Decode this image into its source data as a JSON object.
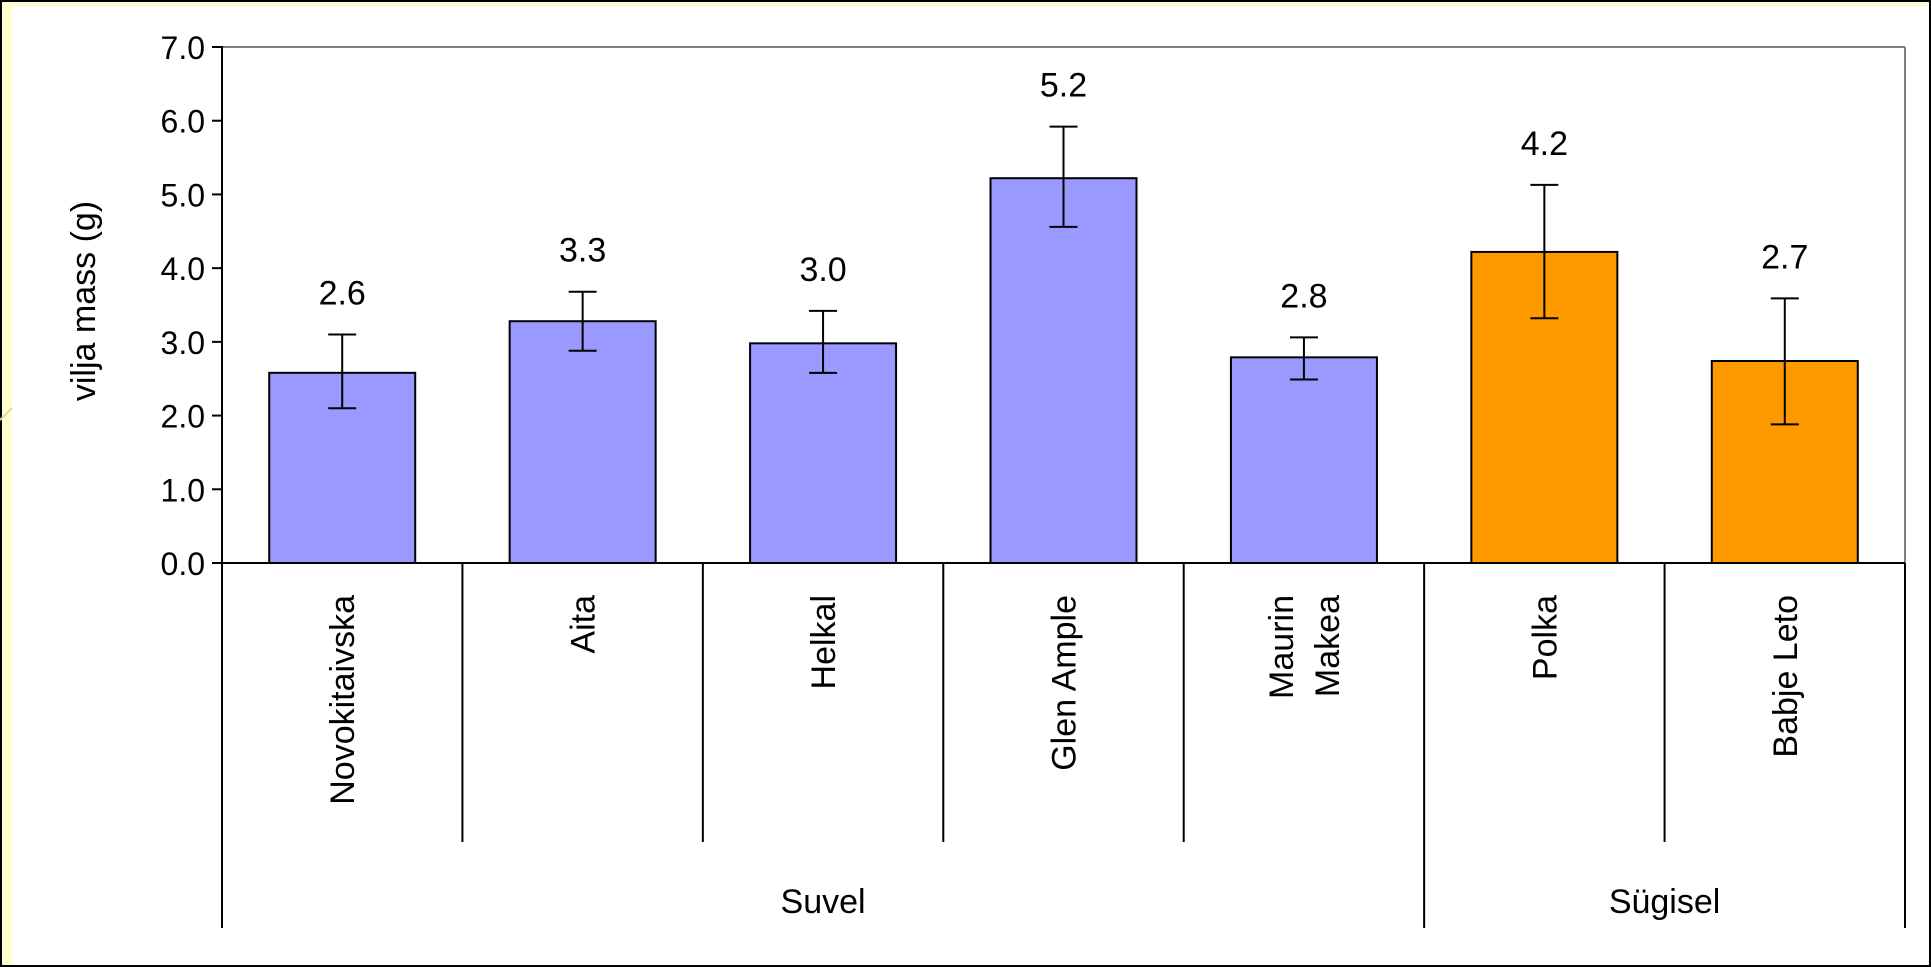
{
  "chart_data": {
    "type": "bar",
    "title": "",
    "xlabel": "",
    "ylabel": "vilja mass (g)",
    "ylim": [
      0,
      7
    ],
    "yticks": [
      "0.0",
      "1.0",
      "2.0",
      "3.0",
      "4.0",
      "5.0",
      "6.0",
      "7.0"
    ],
    "grid": false,
    "categories": [
      "Novokitaivska",
      "Aita",
      "Helkal",
      "Glen Ample",
      "Maurin Makea",
      "Polka",
      "Babje Leto"
    ],
    "category_lines": [
      [
        "Novokitaivska"
      ],
      [
        "Aita"
      ],
      [
        "Helkal"
      ],
      [
        "Glen Ample"
      ],
      [
        "Maurin",
        "Makea"
      ],
      [
        "Polka"
      ],
      [
        "Babje Leto"
      ]
    ],
    "values": [
      2.58,
      3.28,
      2.98,
      5.22,
      2.79,
      4.22,
      2.74
    ],
    "value_labels": [
      "2.6",
      "3.3",
      "3.0",
      "5.2",
      "2.8",
      "4.2",
      "2.7"
    ],
    "error_low": [
      2.1,
      2.88,
      2.58,
      4.56,
      2.49,
      3.32,
      1.88
    ],
    "error_high": [
      3.1,
      3.68,
      3.42,
      5.92,
      3.06,
      5.13,
      3.59
    ],
    "groups": [
      {
        "label": "Suvel",
        "count": 5,
        "color": "#9999ff"
      },
      {
        "label": "Sügisel",
        "count": 2,
        "color": "#ff9900"
      }
    ],
    "colors": {
      "background": "#ffffff",
      "frame": "#fffecf",
      "axis": "#000000",
      "right_border": "#808080"
    }
  }
}
